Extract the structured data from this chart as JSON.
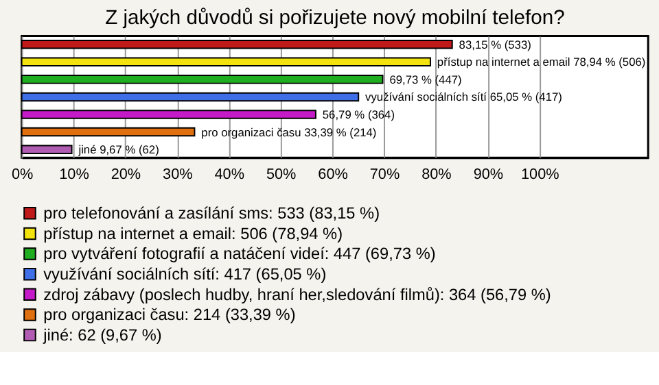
{
  "chart_data": {
    "type": "bar",
    "orientation": "horizontal",
    "stacked": true,
    "title": "Z jakých důvodů si pořizujete nový mobilní telefon?",
    "categories": [
      null,
      null,
      null,
      null,
      null,
      null,
      null
    ],
    "series": [
      {
        "name": "pro telefonování a zasílání sms: 533 (83,15 %)",
        "color": "#c0191a",
        "values": [
          83.15,
          null,
          null,
          null,
          null,
          null,
          null
        ],
        "value_labels": [
          "83,15 % (533)",
          null,
          null,
          null,
          null,
          null,
          null
        ]
      },
      {
        "name": "přístup na internet a email: 506 (78,94 %)",
        "color": "#f2e30e",
        "values": [
          null,
          78.94,
          null,
          null,
          null,
          null,
          null
        ],
        "value_labels": [
          null,
          "přístup na internet a email 78,94 % (506)",
          null,
          null,
          null,
          null,
          null
        ]
      },
      {
        "name": "pro vytváření fotografií a natáčení videí: 447 (69,73 %)",
        "color": "#1fae1f",
        "values": [
          null,
          null,
          69.73,
          null,
          null,
          null,
          null
        ],
        "value_labels": [
          null,
          null,
          "69,73 % (447)",
          null,
          null,
          null,
          null
        ]
      },
      {
        "name": "využívání sociálních sítí: 417 (65,05 %)",
        "color": "#3f6fe6",
        "values": [
          null,
          null,
          null,
          65.05,
          null,
          null,
          null
        ],
        "value_labels": [
          null,
          null,
          null,
          "využívání sociálních sítí 65,05 % (417)",
          null,
          null,
          null
        ]
      },
      {
        "name": "zdroj zábavy (poslech hudby, hraní her,sledování filmů): 364 (56,79 %)",
        "color": "#c41ac7",
        "values": [
          null,
          null,
          null,
          null,
          56.79,
          null,
          null
        ],
        "value_labels": [
          null,
          null,
          null,
          null,
          "56,79 % (364)",
          null,
          null
        ]
      },
      {
        "name": "pro organizaci času: 214 (33,39 %)",
        "color": "#e0700f",
        "values": [
          null,
          null,
          null,
          null,
          null,
          33.39,
          null
        ],
        "value_labels": [
          null,
          null,
          null,
          null,
          null,
          "pro organizaci času 33,39 % (214)",
          null
        ]
      },
      {
        "name": "jiné: 62 (9,67 %)",
        "color": "#b05cb3",
        "values": [
          null,
          null,
          null,
          null,
          null,
          null,
          9.67
        ],
        "value_labels": [
          null,
          null,
          null,
          null,
          null,
          null,
          "jiné 9,67 % (62)"
        ]
      }
    ],
    "xlim": [
      0,
      121
    ],
    "xticks": [
      {
        "value": 0,
        "label": "0%"
      },
      {
        "value": 10,
        "label": "10%"
      },
      {
        "value": 20,
        "label": "20%"
      },
      {
        "value": 30,
        "label": "30%"
      },
      {
        "value": 40,
        "label": "40%"
      },
      {
        "value": 50,
        "label": "50%"
      },
      {
        "value": 60,
        "label": "60%"
      },
      {
        "value": 70,
        "label": "70%"
      },
      {
        "value": 80,
        "label": "80%"
      },
      {
        "value": 90,
        "label": "90%"
      },
      {
        "value": 100,
        "label": "100%"
      }
    ],
    "grid": "x",
    "legend": "bottom",
    "tick_labels": "x"
  }
}
